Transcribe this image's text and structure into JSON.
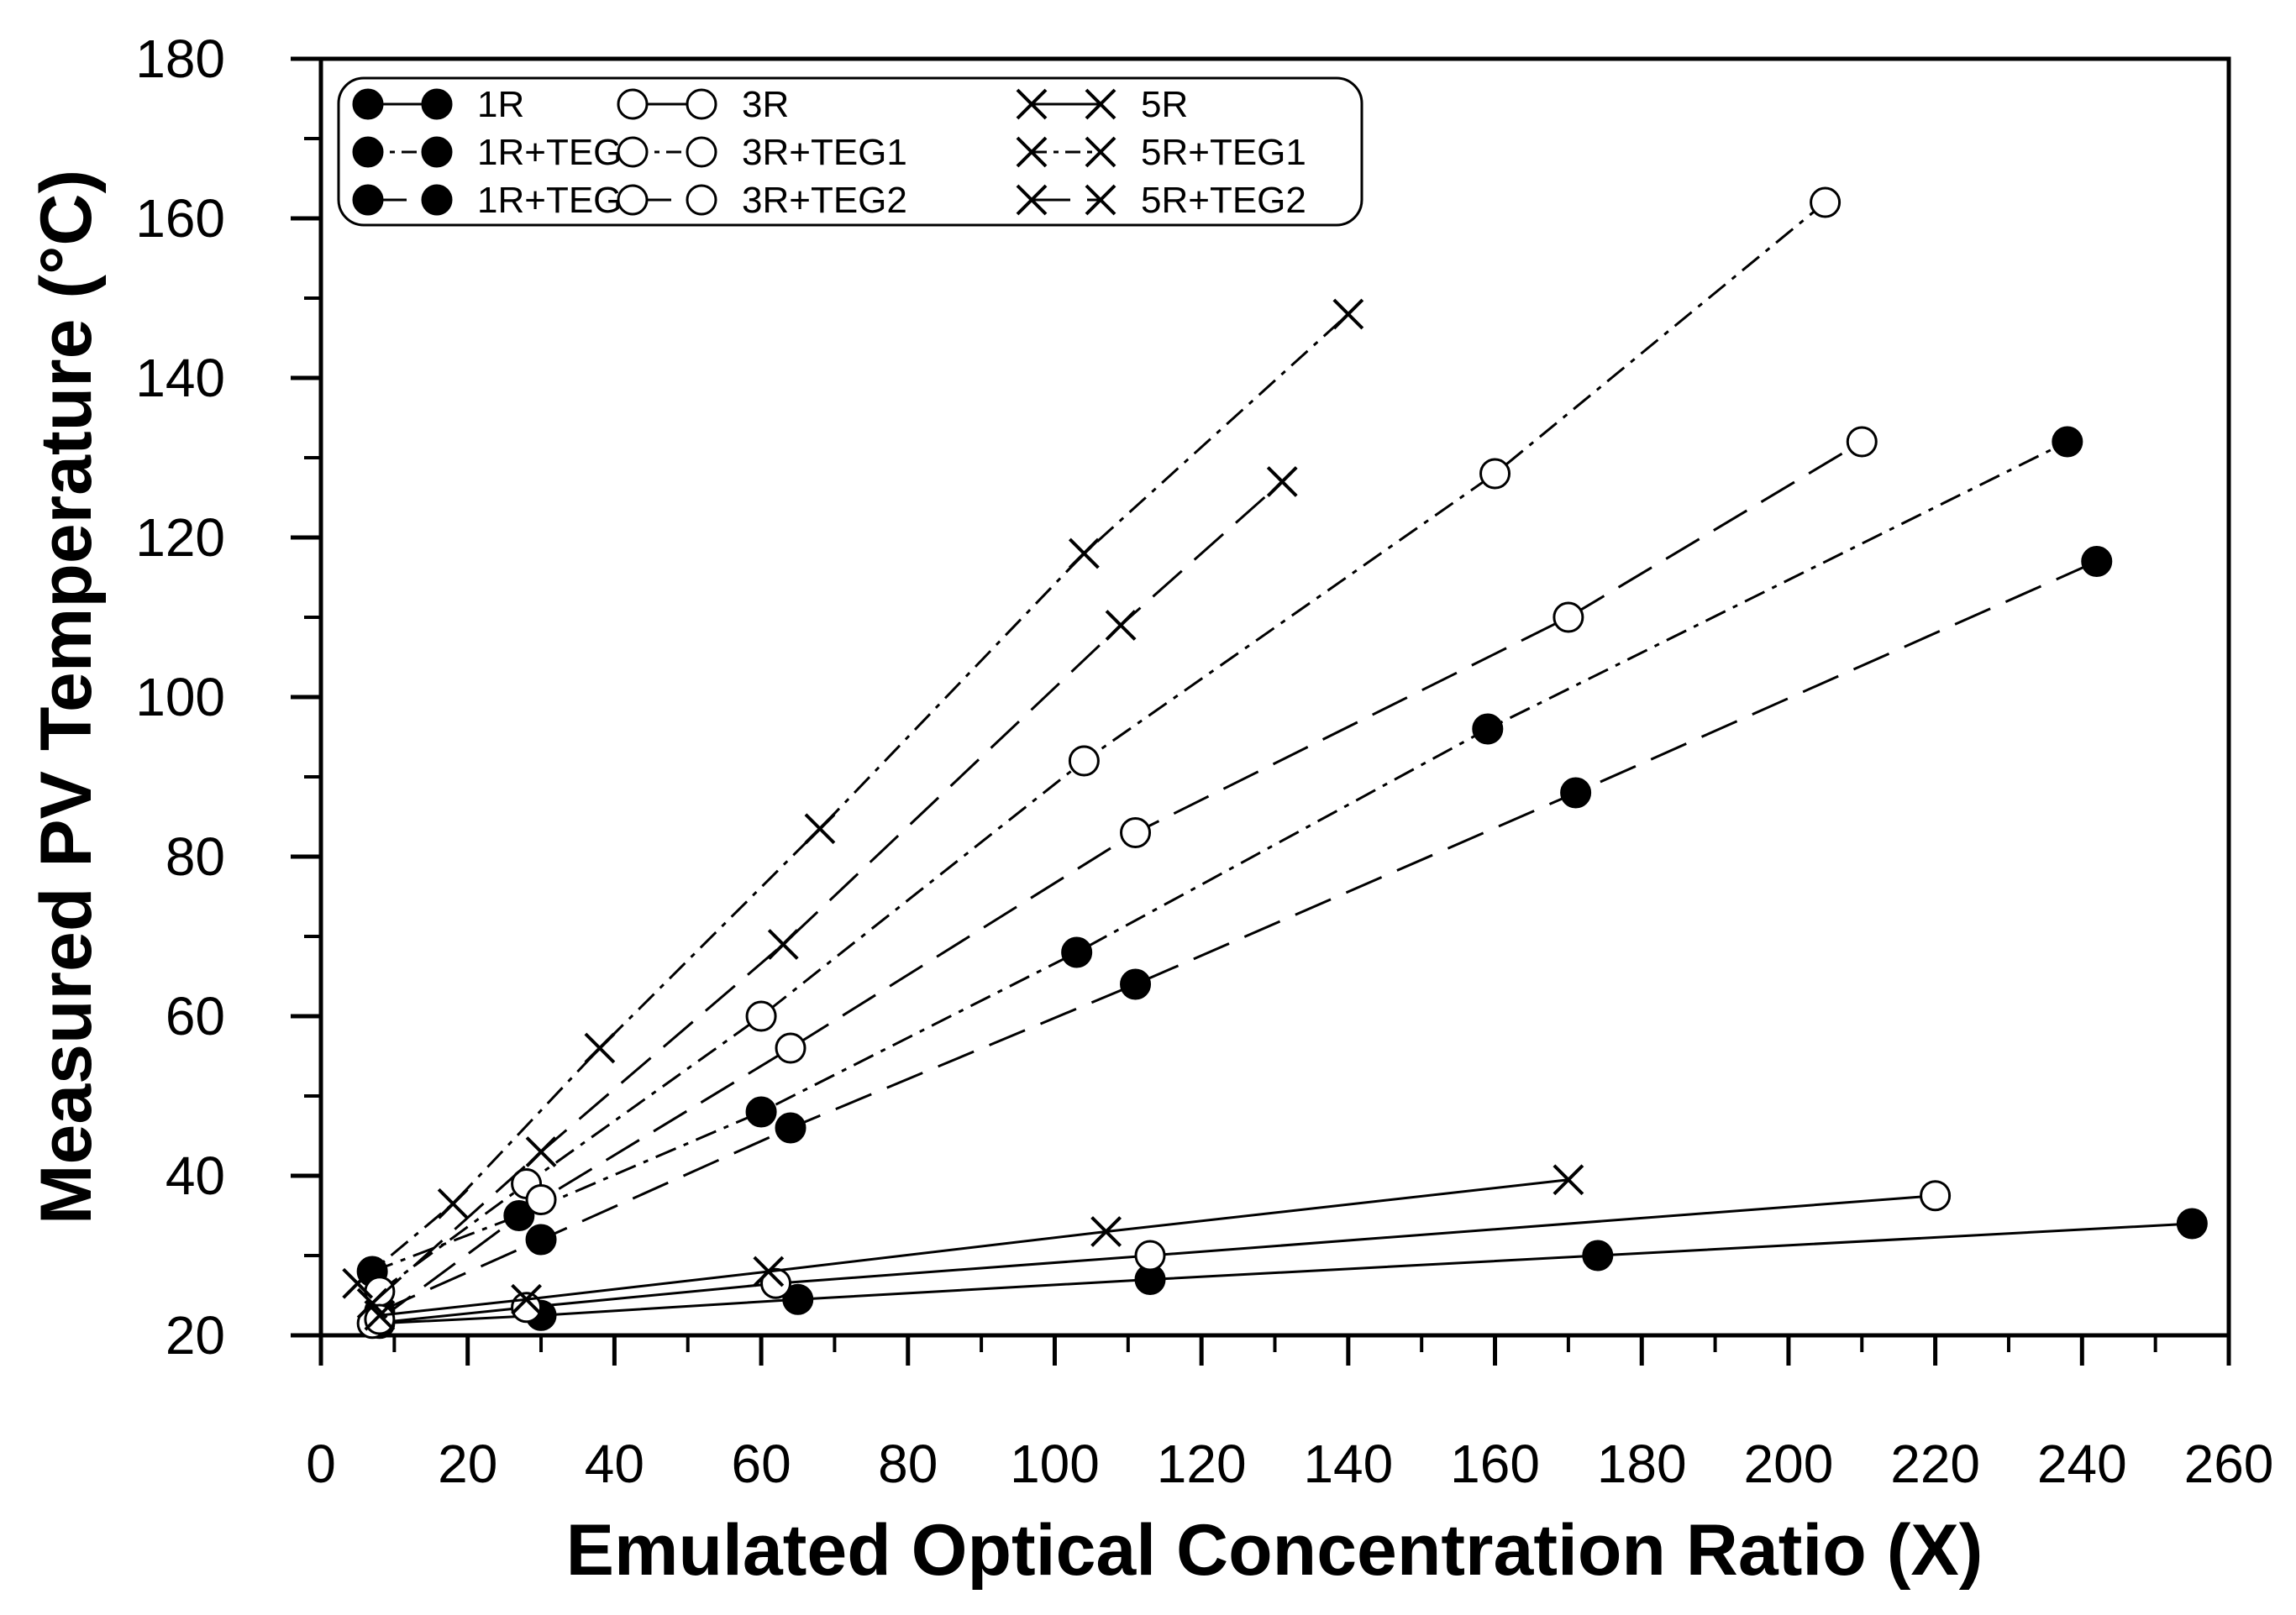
{
  "chart_data": {
    "type": "scatter",
    "title": "",
    "xlabel": "Emulated Optical Concentration Ratio (X)",
    "ylabel": "Measured PV Temperature (°C)",
    "xlim": [
      0,
      260
    ],
    "ylim": [
      20,
      180
    ],
    "x_ticks": [
      0,
      20,
      40,
      60,
      80,
      100,
      120,
      140,
      160,
      180,
      200,
      220,
      240,
      260
    ],
    "y_ticks": [
      20,
      40,
      60,
      80,
      100,
      120,
      140,
      160,
      180
    ],
    "grid": false,
    "legend_position": "top-left",
    "series": [
      {
        "name": "1R",
        "marker": "filled-circle",
        "line": "solid",
        "x": [
          8,
          30,
          65,
          113,
          174,
          255
        ],
        "y": [
          21.5,
          22.5,
          24.5,
          27,
          30,
          34
        ]
      },
      {
        "name": "1R+TEG1",
        "marker": "filled-circle",
        "line": "dash-dot",
        "x": [
          7,
          27,
          60,
          103,
          159,
          238
        ],
        "y": [
          28,
          35,
          48,
          68,
          96,
          132
        ]
      },
      {
        "name": "1R+TEG2",
        "marker": "filled-circle",
        "line": "long-dash",
        "x": [
          8,
          30,
          64,
          111,
          171,
          242
        ],
        "y": [
          23,
          32,
          46,
          64,
          88,
          117
        ]
      },
      {
        "name": "3R",
        "marker": "open-circle",
        "line": "solid",
        "x": [
          7,
          28,
          62,
          113,
          220
        ],
        "y": [
          21.5,
          23.5,
          26.5,
          30,
          37.5
        ]
      },
      {
        "name": "3R+TEG1",
        "marker": "open-circle",
        "line": "dash-dot",
        "x": [
          8,
          28,
          60,
          104,
          160,
          205
        ],
        "y": [
          25.5,
          39,
          60,
          92,
          128,
          162
        ]
      },
      {
        "name": "3R+TEG2",
        "marker": "open-circle",
        "line": "long-dash",
        "x": [
          8,
          30,
          64,
          111,
          170,
          210
        ],
        "y": [
          22,
          37,
          56,
          83,
          110,
          132
        ]
      },
      {
        "name": "5R",
        "marker": "x",
        "line": "solid",
        "x": [
          8,
          28,
          61,
          107,
          170
        ],
        "y": [
          22.5,
          24.5,
          28,
          33,
          39.5
        ]
      },
      {
        "name": "5R+TEG1",
        "marker": "x",
        "line": "dash-dot",
        "x": [
          5,
          18,
          38,
          68,
          104,
          140
        ],
        "y": [
          26.5,
          36.5,
          56,
          83.5,
          118,
          148
        ]
      },
      {
        "name": "5R+TEG2",
        "marker": "x",
        "line": "long-dash",
        "x": [
          7,
          30,
          63,
          109,
          131
        ],
        "y": [
          24,
          43,
          69,
          109,
          127
        ]
      }
    ]
  }
}
